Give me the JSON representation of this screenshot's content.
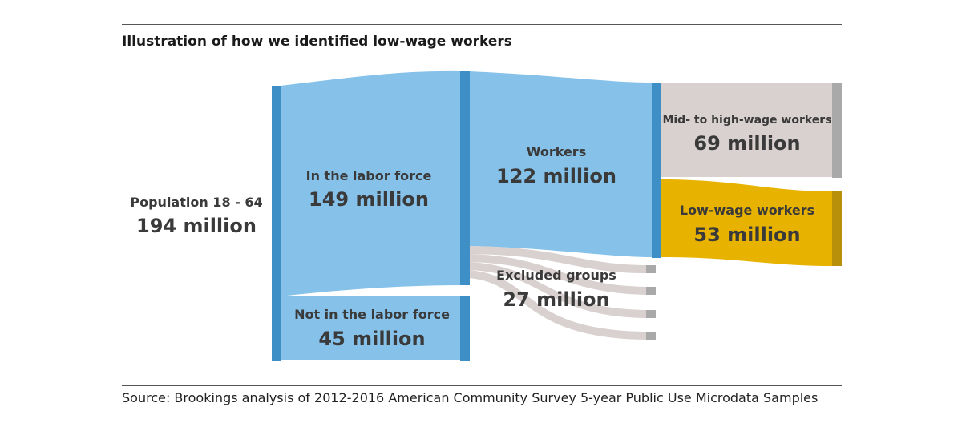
{
  "title": "Illustration of how we identified low-wage workers",
  "source": "Source: Brookings analysis of 2012-2016 American Community Survey 5-year Public Use Microdata Samples",
  "colors": {
    "blue_flow": "#85c1e9",
    "blue_node": "#3d8fc6",
    "gray_flow": "#d9d0d0",
    "gray_node": "#a9a9a9",
    "gold_flow": "#e8b300",
    "gold_node": "#b8900a",
    "text": "#3a3a3a"
  },
  "nodes": {
    "population": {
      "label": "Population 18 - 64",
      "value": "194 million"
    },
    "labor_force": {
      "label": "In the labor force",
      "value": "149 million"
    },
    "not_labor_force": {
      "label": "Not in the labor force",
      "value": "45 million"
    },
    "workers": {
      "label": "Workers",
      "value": "122 million"
    },
    "excluded": {
      "label": "Excluded groups",
      "value": "27 million"
    },
    "mid_high": {
      "label": "Mid- to high-wage workers",
      "value": "69 million"
    },
    "low_wage": {
      "label": "Low-wage workers",
      "value": "53 million"
    }
  }
}
